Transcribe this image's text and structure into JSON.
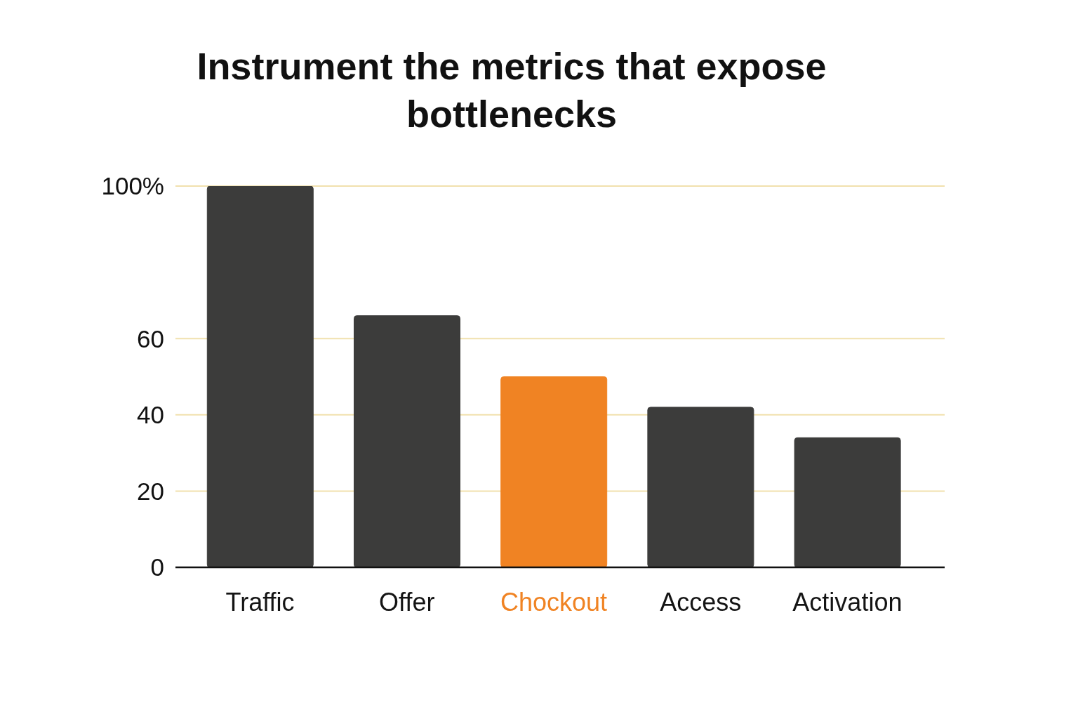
{
  "chart_data": {
    "type": "bar",
    "title": "Instrument the metrics that expose bottlenecks",
    "categories": [
      "Traffic",
      "Offer",
      "Chockout",
      "Access",
      "Activation"
    ],
    "values": [
      100,
      66,
      50,
      42,
      34
    ],
    "colors": [
      "#3c3c3b",
      "#3c3c3b",
      "#f08323",
      "#3c3c3b",
      "#3c3c3b"
    ],
    "ylim": [
      0,
      100
    ],
    "yticks": [
      0,
      20,
      40,
      60,
      {
        "value": 100,
        "label": "100%"
      }
    ],
    "grid": "y"
  }
}
